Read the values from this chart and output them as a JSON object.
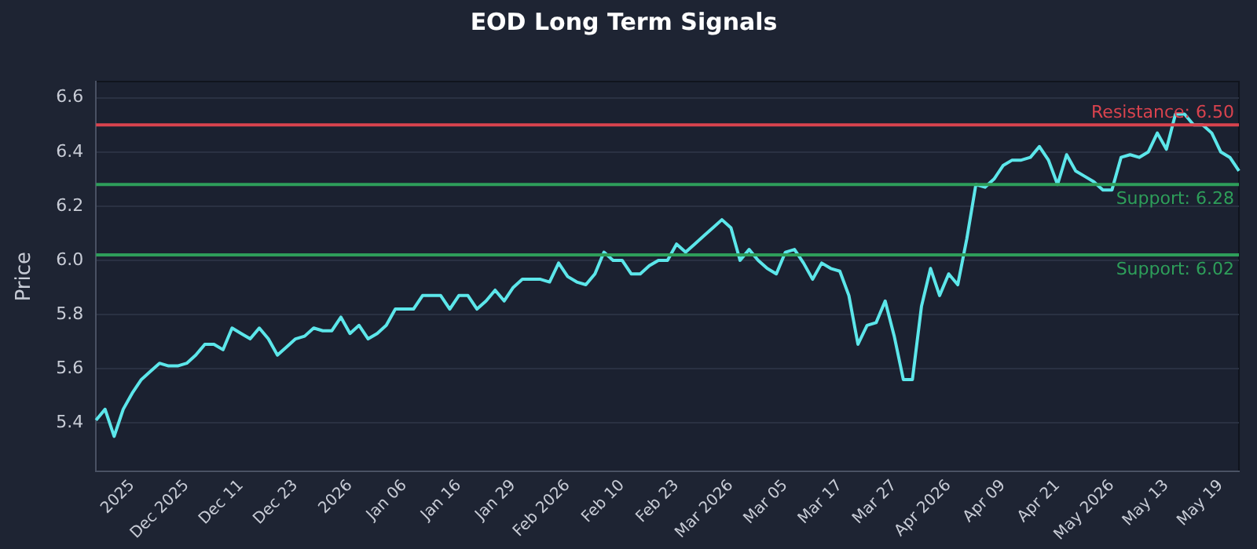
{
  "chart_data": {
    "type": "line",
    "title": "EOD Long Term Signals",
    "ylabel": "Price",
    "categories": [
      null,
      null,
      null,
      null,
      "2025",
      null,
      null,
      null,
      null,
      null,
      "Dec 2025",
      null,
      null,
      null,
      null,
      null,
      "Dec 11",
      null,
      null,
      null,
      null,
      null,
      "Dec 23",
      null,
      null,
      null,
      null,
      null,
      "2026",
      null,
      null,
      null,
      null,
      null,
      "Jan 06",
      null,
      null,
      null,
      null,
      null,
      "Jan 16",
      null,
      null,
      null,
      null,
      null,
      "Jan 29",
      null,
      null,
      null,
      null,
      null,
      "Feb 2026",
      null,
      null,
      null,
      null,
      null,
      "Feb 10",
      null,
      null,
      null,
      null,
      null,
      "Feb 23",
      null,
      null,
      null,
      null,
      null,
      "Mar 2026",
      null,
      null,
      null,
      null,
      null,
      "Mar 05",
      null,
      null,
      null,
      null,
      null,
      "Mar 17",
      null,
      null,
      null,
      null,
      null,
      "Mar 27",
      null,
      null,
      null,
      null,
      null,
      "Apr 2026",
      null,
      null,
      null,
      null,
      null,
      "Apr 09",
      null,
      null,
      null,
      null,
      null,
      "Apr 21",
      null,
      null,
      null,
      null,
      null,
      "May 2026",
      null,
      null,
      null,
      null,
      null,
      "May 13",
      null,
      null,
      null,
      null,
      null,
      "May 19",
      null,
      null
    ],
    "series": [
      {
        "color": "#5ce6ea",
        "values": [
          5.41,
          5.45,
          5.35,
          5.45,
          5.51,
          5.56,
          5.59,
          5.62,
          5.61,
          5.61,
          5.62,
          5.65,
          5.69,
          5.69,
          5.67,
          5.75,
          5.73,
          5.71,
          5.75,
          5.71,
          5.65,
          5.68,
          5.71,
          5.72,
          5.75,
          5.74,
          5.74,
          5.79,
          5.73,
          5.76,
          5.71,
          5.73,
          5.76,
          5.82,
          5.82,
          5.82,
          5.87,
          5.87,
          5.87,
          5.82,
          5.87,
          5.87,
          5.82,
          5.85,
          5.89,
          5.85,
          5.9,
          5.93,
          5.93,
          5.93,
          5.92,
          5.99,
          5.94,
          5.92,
          5.91,
          5.95,
          6.03,
          6.0,
          6.0,
          5.95,
          5.95,
          5.98,
          6.0,
          6.0,
          6.06,
          6.03,
          6.06,
          6.09,
          6.12,
          6.15,
          6.12,
          6.0,
          6.04,
          6.0,
          5.97,
          5.95,
          6.03,
          6.04,
          5.99,
          5.93,
          5.99,
          5.97,
          5.96,
          5.87,
          5.69,
          5.76,
          5.77,
          5.85,
          5.72,
          5.56,
          5.56,
          5.83,
          5.97,
          5.87,
          5.95,
          5.91,
          6.08,
          6.28,
          6.27,
          6.3,
          6.35,
          6.37,
          6.37,
          6.38,
          6.42,
          6.37,
          6.28,
          6.39,
          6.33,
          6.31,
          6.29,
          6.26,
          6.26,
          6.38,
          6.39,
          6.38,
          6.4,
          6.47,
          6.41,
          6.54,
          6.54,
          6.5,
          6.5,
          6.47,
          6.4,
          6.38,
          6.33
        ]
      }
    ],
    "ylim": [
      5.22,
      6.66
    ],
    "yticks": [
      5.4,
      5.6,
      5.8,
      {
        "value": 6.0,
        "label": "6.0"
      },
      6.2,
      6.4,
      6.6
    ],
    "grid": "y",
    "legend": false,
    "marker": "none",
    "line_style": "solid",
    "ref_lines": [
      {
        "axis": "y",
        "value": 6.5,
        "label": "Resistance: 6.50",
        "color": "#d9434e"
      },
      {
        "axis": "y",
        "value": 6.28,
        "label": "Support: 6.28",
        "color": "#2e9e5a"
      },
      {
        "axis": "y",
        "value": 6.02,
        "label": "Support: 6.02",
        "color": "#2e9e5a"
      }
    ]
  }
}
